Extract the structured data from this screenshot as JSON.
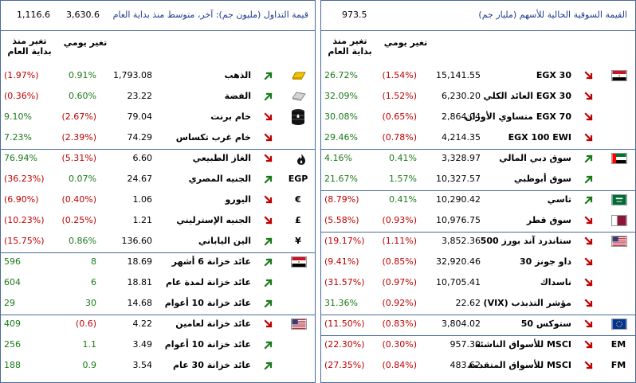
{
  "left": {
    "header_title": "قيمة التداول (مليون جم): آخر، متوسط منذ بداية العام",
    "header_value1": "3,630.6",
    "header_value2": "1,116.6",
    "col_daily": "تغير يومي",
    "col_ytd_l1": "تغير منذ",
    "col_ytd_l2": "بداية العام",
    "rows": [
      {
        "name": "الذهب",
        "value": "1,793.08",
        "daily": "0.91%",
        "ytd": "(1.97%)",
        "daily_dir": "pos",
        "ytd_dir": "neg",
        "arrow": "up",
        "icon": "gold-bar-icon"
      },
      {
        "name": "الفضة",
        "value": "23.22",
        "daily": "0.60%",
        "ytd": "(0.36%)",
        "daily_dir": "pos",
        "ytd_dir": "neg",
        "arrow": "up",
        "icon": "silver-bar-icon"
      },
      {
        "name": "خام برنت",
        "value": "79.04",
        "daily": "(2.67%)",
        "ytd": "9.10%",
        "daily_dir": "neg",
        "ytd_dir": "pos",
        "arrow": "down",
        "icon": "oil-barrel-icon"
      },
      {
        "name": "خام غرب تكساس",
        "value": "74.29",
        "daily": "(2.39%)",
        "ytd": "7.23%",
        "daily_dir": "neg",
        "ytd_dir": "pos",
        "arrow": "down",
        "icon": ""
      },
      {
        "name": "الغاز الطبيعي",
        "value": "6.60",
        "daily": "(5.31%)",
        "ytd": "76.94%",
        "daily_dir": "neg",
        "ytd_dir": "pos",
        "arrow": "down",
        "icon": "flame-icon"
      },
      {
        "name": "الجنيه المصري",
        "value": "24.67",
        "daily": "0.07%",
        "ytd": "(36.23%)",
        "daily_dir": "pos",
        "ytd_dir": "neg",
        "arrow": "up",
        "icon": "EGP"
      },
      {
        "name": "اليورو",
        "value": "1.06",
        "daily": "(0.40%)",
        "ytd": "(6.90%)",
        "daily_dir": "neg",
        "ytd_dir": "neg",
        "arrow": "down",
        "icon": "€"
      },
      {
        "name": "الجنيه الإسترليني",
        "value": "1.21",
        "daily": "(0.25%)",
        "ytd": "(10.23%)",
        "daily_dir": "neg",
        "ytd_dir": "neg",
        "arrow": "down",
        "icon": "£"
      },
      {
        "name": "الين الياباني",
        "value": "136.60",
        "daily": "0.86%",
        "ytd": "(15.75%)",
        "daily_dir": "pos",
        "ytd_dir": "neg",
        "arrow": "up",
        "icon": "¥"
      },
      {
        "name": "عائد خزانة 6 أشهر",
        "value": "18.69",
        "daily": "8",
        "ytd": "596",
        "daily_dir": "pos",
        "ytd_dir": "pos",
        "arrow": "up",
        "icon": "egypt-flag-icon"
      },
      {
        "name": "عائد خزانة لمدة عام",
        "value": "18.81",
        "daily": "6",
        "ytd": "604",
        "daily_dir": "pos",
        "ytd_dir": "pos",
        "arrow": "up",
        "icon": ""
      },
      {
        "name": "عائد خزانة 10 أعوام",
        "value": "14.68",
        "daily": "30",
        "ytd": "29",
        "daily_dir": "pos",
        "ytd_dir": "pos",
        "arrow": "up",
        "icon": ""
      },
      {
        "name": "عائد خزانة لعامين",
        "value": "4.22",
        "daily": "(0.6)",
        "ytd": "409",
        "daily_dir": "neg",
        "ytd_dir": "pos",
        "arrow": "down",
        "icon": "usa-flag-icon"
      },
      {
        "name": "عائد خزانة 10 أعوام",
        "value": "3.49",
        "daily": "1.1",
        "ytd": "256",
        "daily_dir": "pos",
        "ytd_dir": "pos",
        "arrow": "up",
        "icon": ""
      },
      {
        "name": "عائد خزانة 30 عام",
        "value": "3.54",
        "daily": "0.9",
        "ytd": "188",
        "daily_dir": "pos",
        "ytd_dir": "pos",
        "arrow": "up",
        "icon": ""
      }
    ]
  },
  "right": {
    "header_title": "القيمة السوقية الحالية للأسهم (مليار جم)",
    "header_value": "973.5",
    "col_daily": "تغير يومي",
    "col_ytd_l1": "تغير منذ",
    "col_ytd_l2": "بداية العام",
    "rows": [
      {
        "name": "EGX 30",
        "value": "15,141.55",
        "daily": "(1.54%)",
        "ytd": "26.72%",
        "daily_dir": "neg",
        "ytd_dir": "pos",
        "arrow": "down",
        "icon": "egypt-flag-icon"
      },
      {
        "name": "EGX 30 العائد الكلي",
        "value": "6,230.20",
        "daily": "(1.52%)",
        "ytd": "32.09%",
        "daily_dir": "neg",
        "ytd_dir": "pos",
        "arrow": "down",
        "icon": ""
      },
      {
        "name": "EGX 70 متساوي الأوزان",
        "value": "2,864.04",
        "daily": "(0.65%)",
        "ytd": "30.08%",
        "daily_dir": "neg",
        "ytd_dir": "pos",
        "arrow": "down",
        "icon": ""
      },
      {
        "name": "EGX 100 EWI",
        "value": "4,214.35",
        "daily": "(0.78%)",
        "ytd": "29.46%",
        "daily_dir": "neg",
        "ytd_dir": "pos",
        "arrow": "down",
        "icon": ""
      },
      {
        "name": "سوق دبي المالي",
        "value": "3,328.97",
        "daily": "0.41%",
        "ytd": "4.16%",
        "daily_dir": "pos",
        "ytd_dir": "pos",
        "arrow": "up",
        "icon": "uae-flag-icon"
      },
      {
        "name": "سوق أبوظبي",
        "value": "10,327.57",
        "daily": "1.57%",
        "ytd": "21.67%",
        "daily_dir": "pos",
        "ytd_dir": "pos",
        "arrow": "up",
        "icon": ""
      },
      {
        "name": "تاسي",
        "value": "10,290.42",
        "daily": "0.41%",
        "ytd": "(8.79%)",
        "daily_dir": "pos",
        "ytd_dir": "neg",
        "arrow": "up",
        "icon": "saudi-flag-icon"
      },
      {
        "name": "سوق قطر",
        "value": "10,976.75",
        "daily": "(0.93%)",
        "ytd": "(5.58%)",
        "daily_dir": "neg",
        "ytd_dir": "neg",
        "arrow": "down",
        "icon": "qatar-flag-icon"
      },
      {
        "name": "ستاندرد آند بورز 500",
        "value": "3,852.36",
        "daily": "(1.11%)",
        "ytd": "(19.17%)",
        "daily_dir": "neg",
        "ytd_dir": "neg",
        "arrow": "down",
        "icon": "usa-flag-icon"
      },
      {
        "name": "داو جونز 30",
        "value": "32,920.46",
        "daily": "(0.85%)",
        "ytd": "(9.41%)",
        "daily_dir": "neg",
        "ytd_dir": "neg",
        "arrow": "down",
        "icon": ""
      },
      {
        "name": "ناسداك",
        "value": "10,705.41",
        "daily": "(0.97%)",
        "ytd": "(31.57%)",
        "daily_dir": "neg",
        "ytd_dir": "neg",
        "arrow": "down",
        "icon": ""
      },
      {
        "name": "مؤشر التذبذب (VIX)",
        "value": "22.62",
        "daily": "(0.92%)",
        "ytd": "31.36%",
        "daily_dir": "neg",
        "ytd_dir": "pos",
        "arrow": "down",
        "icon": ""
      },
      {
        "name": "ستوكس 50",
        "value": "3,804.02",
        "daily": "(0.83%)",
        "ytd": "(11.50%)",
        "daily_dir": "neg",
        "ytd_dir": "neg",
        "arrow": "down",
        "icon": "eu-flag-icon"
      },
      {
        "name": "MSCI للأسواق الناشئة",
        "value": "957.30",
        "daily": "(0.30%)",
        "ytd": "(22.30%)",
        "daily_dir": "neg",
        "ytd_dir": "neg",
        "arrow": "down",
        "icon": "EM"
      },
      {
        "name": "MSCI للأسواق المتقدمة",
        "value": "483.62",
        "daily": "(0.84%)",
        "ytd": "(27.35%)",
        "daily_dir": "neg",
        "ytd_dir": "neg",
        "arrow": "down",
        "icon": "FM"
      }
    ]
  },
  "colors": {
    "positive": "#1a7a1a",
    "negative": "#c00000",
    "border": "#4a6a9a",
    "header_text": "#1f3b8c"
  }
}
